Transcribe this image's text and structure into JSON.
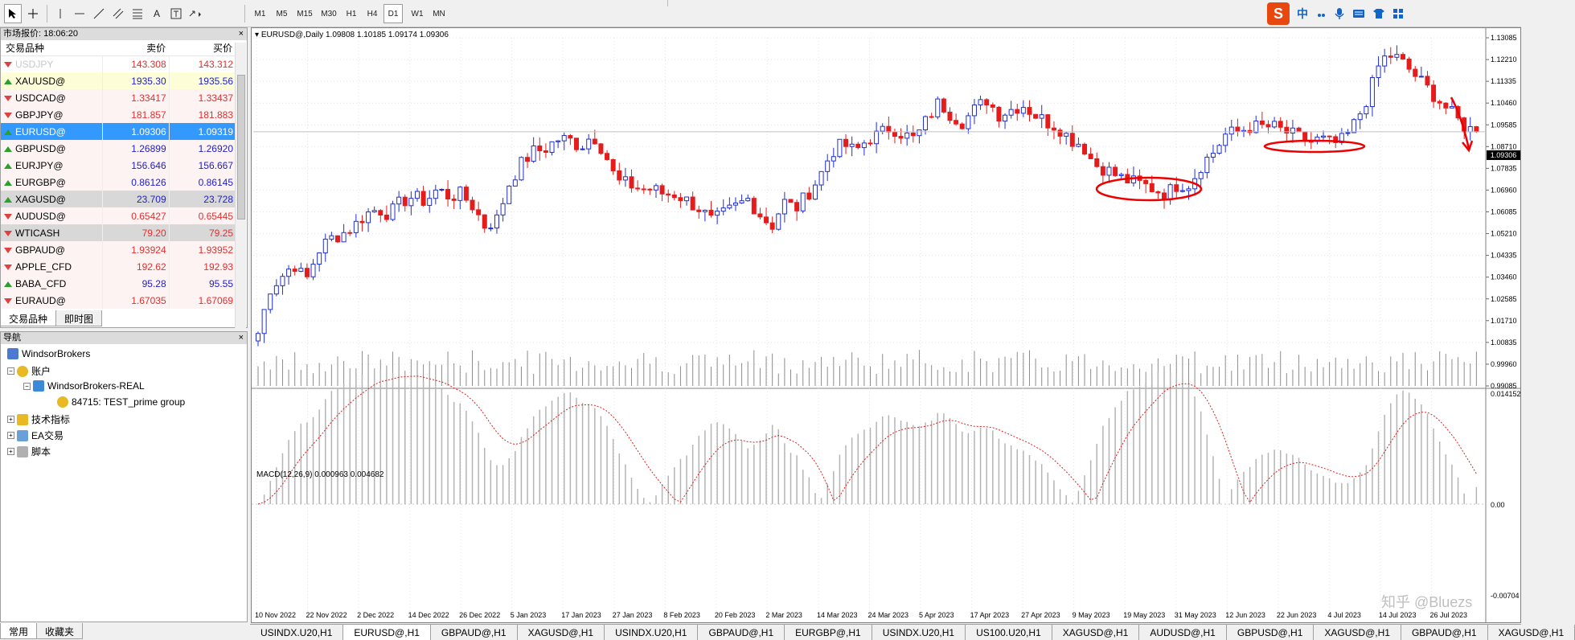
{
  "toolbar": {
    "periods": [
      "M1",
      "M5",
      "M15",
      "M30",
      "H1",
      "H4",
      "D1",
      "W1",
      "MN"
    ],
    "active_period": "D1",
    "text_tool": "A"
  },
  "ime": {
    "logo": "S",
    "lang": "中"
  },
  "market_watch": {
    "title": "市场报价: 18:06:20",
    "headers": {
      "symbol": "交易品种",
      "bid": "卖价",
      "ask": "买价"
    },
    "rows": [
      {
        "symbol": "USDJPY",
        "bid": "143.308",
        "ask": "143.312",
        "dir": "dn",
        "bg": "#ffffff",
        "color": "#c8c8c8",
        "numcolor": "#e03030"
      },
      {
        "symbol": "XAUUSD@",
        "bid": "1935.30",
        "ask": "1935.56",
        "dir": "up",
        "bg": "#fdfdd8",
        "color": "#000000",
        "numcolor": "#2020c8"
      },
      {
        "symbol": "USDCAD@",
        "bid": "1.33417",
        "ask": "1.33437",
        "dir": "dn",
        "bg": "#fdf3f3",
        "color": "#000000",
        "numcolor": "#e03030"
      },
      {
        "symbol": "GBPJPY@",
        "bid": "181.857",
        "ask": "181.883",
        "dir": "dn",
        "bg": "#fdf3f3",
        "color": "#000000",
        "numcolor": "#e03030"
      },
      {
        "symbol": "EURUSD@",
        "bid": "1.09306",
        "ask": "1.09319",
        "dir": "up",
        "bg": "#3399ff",
        "color": "#ffffff",
        "numcolor": "#ffffff"
      },
      {
        "symbol": "GBPUSD@",
        "bid": "1.26899",
        "ask": "1.26920",
        "dir": "up",
        "bg": "#fdf3f3",
        "color": "#000000",
        "numcolor": "#2020c8"
      },
      {
        "symbol": "EURJPY@",
        "bid": "156.646",
        "ask": "156.667",
        "dir": "up",
        "bg": "#fdf3f3",
        "color": "#000000",
        "numcolor": "#2020c8"
      },
      {
        "symbol": "EURGBP@",
        "bid": "0.86126",
        "ask": "0.86145",
        "dir": "up",
        "bg": "#fdf3f3",
        "color": "#000000",
        "numcolor": "#2020c8"
      },
      {
        "symbol": "XAGUSD@",
        "bid": "23.709",
        "ask": "23.728",
        "dir": "up",
        "bg": "#d8d8d8",
        "color": "#000000",
        "numcolor": "#2020c8"
      },
      {
        "symbol": "AUDUSD@",
        "bid": "0.65427",
        "ask": "0.65445",
        "dir": "dn",
        "bg": "#fdf3f3",
        "color": "#000000",
        "numcolor": "#e03030"
      },
      {
        "symbol": "WTICASH",
        "bid": "79.20",
        "ask": "79.25",
        "dir": "dn",
        "bg": "#d8d8d8",
        "color": "#000000",
        "numcolor": "#e03030"
      },
      {
        "symbol": "GBPAUD@",
        "bid": "1.93924",
        "ask": "1.93952",
        "dir": "dn",
        "bg": "#fdf3f3",
        "color": "#000000",
        "numcolor": "#e03030"
      },
      {
        "symbol": "APPLE_CFD",
        "bid": "192.62",
        "ask": "192.93",
        "dir": "dn",
        "bg": "#fdf3f3",
        "color": "#000000",
        "numcolor": "#e03030"
      },
      {
        "symbol": "BABA_CFD",
        "bid": "95.28",
        "ask": "95.55",
        "dir": "up",
        "bg": "#fdf3f3",
        "color": "#000000",
        "numcolor": "#2020c8"
      },
      {
        "symbol": "EURAUD@",
        "bid": "1.67035",
        "ask": "1.67069",
        "dir": "dn",
        "bg": "#fdf3f3",
        "color": "#000000",
        "numcolor": "#e03030"
      }
    ],
    "tabs": [
      "交易品种",
      "即时图"
    ]
  },
  "navigator": {
    "title": "导航",
    "root": "WindsorBrokers",
    "accounts": "账户",
    "server": "WindsorBrokers-REAL",
    "account": "84715: TEST_prime group",
    "indicators": "技术指标",
    "ea": "EA交易",
    "scripts": "脚本",
    "tabs": [
      "常用",
      "收藏夹"
    ]
  },
  "chart": {
    "header": "EURUSD@,Daily  1.09808 1.10185 1.09174 1.09306",
    "macd_label": "MACD(12,26,9) 0.000963 0.004682",
    "current_price": "1.09306",
    "watermark": "知乎 @Bluezs"
  },
  "chart_data": {
    "type": "candlestick",
    "title": "EURUSD@,Daily",
    "ylim": [
      0.99085,
      1.13085
    ],
    "y_ticks": [
      "1.13085",
      "1.12210",
      "1.11335",
      "1.10460",
      "1.09585",
      "1.08710",
      "1.07835",
      "1.06960",
      "1.06085",
      "1.05210",
      "1.04335",
      "1.03460",
      "1.02585",
      "1.01710",
      "1.00835",
      "0.99960",
      "0.99085"
    ],
    "x_ticks": [
      "10 Nov 2022",
      "22 Nov 2022",
      "2 Dec 2022",
      "14 Dec 2022",
      "26 Dec 2022",
      "5 Jan 2023",
      "17 Jan 2023",
      "27 Jan 2023",
      "8 Feb 2023",
      "20 Feb 2023",
      "2 Mar 2023",
      "14 Mar 2023",
      "24 Mar 2023",
      "5 Apr 2023",
      "17 Apr 2023",
      "27 Apr 2023",
      "9 May 2023",
      "19 May 2023",
      "31 May 2023",
      "12 Jun 2023",
      "22 Jun 2023",
      "4 Jul 2023",
      "14 Jul 2023",
      "26 Jul 2023"
    ],
    "close_path": [
      1.012,
      1.03,
      1.035,
      1.04,
      1.033,
      1.045,
      1.05,
      1.052,
      1.055,
      1.06,
      1.062,
      1.06,
      1.065,
      1.067,
      1.065,
      1.07,
      1.067,
      1.068,
      1.063,
      1.055,
      1.058,
      1.072,
      1.08,
      1.085,
      1.086,
      1.09,
      1.09,
      1.087,
      1.092,
      1.085,
      1.073,
      1.072,
      1.07,
      1.07,
      1.068,
      1.068,
      1.065,
      1.062,
      1.057,
      1.06,
      1.063,
      1.066,
      1.06,
      1.055,
      1.065,
      1.062,
      1.068,
      1.075,
      1.085,
      1.088,
      1.085,
      1.09,
      1.092,
      1.095,
      1.092,
      1.09,
      1.098,
      1.105,
      1.1,
      1.097,
      1.102,
      1.106,
      1.1,
      1.102,
      1.104,
      1.1,
      1.097,
      1.095,
      1.09,
      1.088,
      1.08,
      1.078,
      1.075,
      1.073,
      1.072,
      1.07,
      1.068,
      1.072,
      1.072,
      1.08,
      1.085,
      1.092,
      1.093,
      1.095,
      1.095,
      1.095,
      1.093,
      1.091,
      1.089,
      1.09,
      1.088,
      1.09,
      1.098,
      1.108,
      1.122,
      1.124,
      1.12,
      1.115,
      1.11,
      1.105,
      1.1,
      1.095,
      1.09306
    ],
    "macd_ylim": [
      -0.00704,
      0.014152
    ],
    "macd_ticks": [
      "0.014152",
      "0.00",
      "-0.00704"
    ]
  },
  "bottom_tabs": [
    "USINDX.U20,H1",
    "EURUSD@,H1",
    "GBPAUD@,H1",
    "XAGUSD@,H1",
    "USINDX.U20,H1",
    "GBPAUD@,H1",
    "EURGBP@,H1",
    "USINDX.U20,H1",
    "US100.U20,H1",
    "XAGUSD@,H1",
    "AUDUSD@,H1",
    "GBPUSD@,H1",
    "XAGUSD@,H1",
    "GBPAUD@,H1",
    "XAGUSD@,H1"
  ],
  "colors": {
    "up": "#1f2ed6",
    "down": "#e41c1c",
    "annotation": "#ee0000",
    "volume": "#8c8c8c",
    "macd_signal": "#e41c1c"
  }
}
